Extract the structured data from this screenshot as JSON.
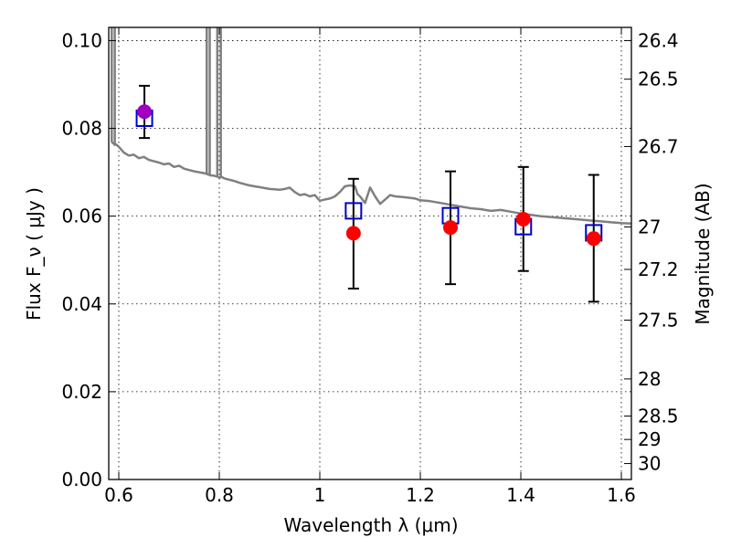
{
  "chart_data": {
    "type": "scatter",
    "xlabel": "Wavelength λ (μm)",
    "ylabel": "Flux F_ν ( μJy )",
    "y2label": "Magnitude (AB)",
    "xlim": [
      0.58,
      1.62
    ],
    "ylim": [
      0.0,
      0.103
    ],
    "xticks": [
      "0.6",
      "0.8",
      "1",
      "1.2",
      "1.4",
      "1.6"
    ],
    "yticks": [
      "0.00",
      "0.02",
      "0.04",
      "0.06",
      "0.08",
      "0.10"
    ],
    "mag_ticks": [
      "26.4",
      "26.5",
      "26.7",
      "27",
      "27.2",
      "27.5",
      "28",
      "28.5",
      "29",
      "30"
    ],
    "grid": true,
    "model_spectrum": {
      "color": "#808080",
      "x": [
        0.585,
        0.59,
        0.595,
        0.6,
        0.61,
        0.62,
        0.63,
        0.64,
        0.65,
        0.66,
        0.67,
        0.68,
        0.69,
        0.7,
        0.71,
        0.72,
        0.73,
        0.74,
        0.75,
        0.76,
        0.77,
        0.778,
        0.782,
        0.79,
        0.796,
        0.8,
        0.805,
        0.81,
        0.82,
        0.83,
        0.84,
        0.85,
        0.86,
        0.87,
        0.88,
        0.89,
        0.9,
        0.91,
        0.92,
        0.93,
        0.94,
        0.95,
        0.96,
        0.97,
        0.98,
        0.99,
        1.0,
        1.01,
        1.02,
        1.03,
        1.04,
        1.05,
        1.06,
        1.07,
        1.075,
        1.08,
        1.09,
        1.1,
        1.11,
        1.12,
        1.13,
        1.14,
        1.15,
        1.17,
        1.19,
        1.2,
        1.22,
        1.24,
        1.26,
        1.28,
        1.3,
        1.32,
        1.34,
        1.36,
        1.38,
        1.4,
        1.42,
        1.44,
        1.46,
        1.48,
        1.5,
        1.52,
        1.54,
        1.56,
        1.58,
        1.6,
        1.62
      ],
      "y": [
        0.077,
        0.0765,
        0.0763,
        0.0758,
        0.0745,
        0.0738,
        0.074,
        0.0732,
        0.0735,
        0.0728,
        0.0725,
        0.0722,
        0.0718,
        0.072,
        0.0712,
        0.0715,
        0.0708,
        0.0705,
        0.0702,
        0.07,
        0.0698,
        0.0695,
        0.0693,
        0.0692,
        0.069,
        0.0688,
        0.0689,
        0.0686,
        0.0683,
        0.068,
        0.0676,
        0.0673,
        0.067,
        0.0668,
        0.0666,
        0.0664,
        0.0662,
        0.0661,
        0.066,
        0.0662,
        0.0665,
        0.0655,
        0.0648,
        0.065,
        0.0645,
        0.0648,
        0.0635,
        0.0638,
        0.064,
        0.0645,
        0.0655,
        0.0668,
        0.067,
        0.0668,
        0.065,
        0.0645,
        0.063,
        0.0665,
        0.0645,
        0.0628,
        0.0638,
        0.0648,
        0.0645,
        0.0643,
        0.064,
        0.0636,
        0.0634,
        0.063,
        0.0626,
        0.0622,
        0.0618,
        0.0616,
        0.0612,
        0.0614,
        0.061,
        0.0606,
        0.0603,
        0.06,
        0.0598,
        0.0596,
        0.0594,
        0.0592,
        0.059,
        0.0588,
        0.0586,
        0.0584,
        0.0583
      ]
    },
    "model_spikes": [
      {
        "x": 0.586,
        "y_top": 0.103,
        "y_bottom": 0.077
      },
      {
        "x": 0.592,
        "y_top": 0.103,
        "y_bottom": 0.076
      },
      {
        "x": 0.775,
        "y_top": 0.103,
        "y_bottom": 0.0695
      },
      {
        "x": 0.781,
        "y_top": 0.103,
        "y_bottom": 0.0693
      },
      {
        "x": 0.796,
        "y_top": 0.103,
        "y_bottom": 0.069
      },
      {
        "x": 0.803,
        "y_top": 0.103,
        "y_bottom": 0.0688
      }
    ],
    "model_photometry": {
      "color": "#0000cc",
      "x": [
        0.651,
        1.067,
        1.26,
        1.405,
        1.545
      ],
      "y": [
        0.0823,
        0.0612,
        0.0601,
        0.0576,
        0.0562
      ]
    },
    "observed": {
      "color": "#ff0000",
      "x": [
        0.651,
        1.067,
        1.26,
        1.405,
        1.545
      ],
      "y": [
        0.0838,
        0.0561,
        0.0574,
        0.0593,
        0.0549
      ],
      "err_low": [
        0.0778,
        0.0435,
        0.0445,
        0.0475,
        0.0405
      ],
      "err_high": [
        0.0897,
        0.0685,
        0.0702,
        0.0712,
        0.0694
      ],
      "first_point_color": "#a000c0"
    }
  }
}
